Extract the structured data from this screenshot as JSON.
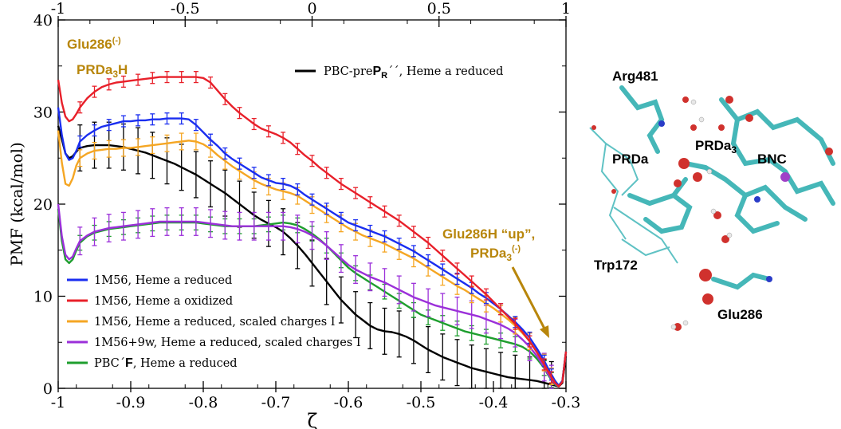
{
  "chart_data": {
    "type": "line",
    "xlabel": "ζ",
    "ylabel": "PMF (kcal/mol)",
    "xlim": [
      -1.0,
      -0.3
    ],
    "ylim": [
      0,
      40
    ],
    "bottom_ticks": [
      "-1",
      "-0.9",
      "-0.8",
      "-0.7",
      "-0.6",
      "-0.5",
      "-0.4",
      "-0.3"
    ],
    "top_ticks": [
      "-1",
      "-0.5",
      "0",
      "0.5",
      "1"
    ],
    "y_ticks": [
      "0",
      "10",
      "20",
      "30",
      "40"
    ],
    "series": [
      {
        "name": "1M56, Heme a reduced",
        "color": "#1a2ef0",
        "x": [
          -1.0,
          -0.995,
          -0.99,
          -0.985,
          -0.98,
          -0.975,
          -0.97,
          -0.96,
          -0.95,
          -0.94,
          -0.93,
          -0.92,
          -0.91,
          -0.9,
          -0.89,
          -0.88,
          -0.87,
          -0.86,
          -0.85,
          -0.84,
          -0.83,
          -0.82,
          -0.81,
          -0.8,
          -0.79,
          -0.78,
          -0.77,
          -0.76,
          -0.75,
          -0.74,
          -0.73,
          -0.72,
          -0.71,
          -0.7,
          -0.69,
          -0.68,
          -0.67,
          -0.66,
          -0.65,
          -0.64,
          -0.63,
          -0.62,
          -0.61,
          -0.6,
          -0.59,
          -0.58,
          -0.57,
          -0.56,
          -0.55,
          -0.54,
          -0.53,
          -0.52,
          -0.51,
          -0.5,
          -0.49,
          -0.48,
          -0.47,
          -0.46,
          -0.45,
          -0.44,
          -0.43,
          -0.42,
          -0.41,
          -0.4,
          -0.39,
          -0.38,
          -0.37,
          -0.36,
          -0.35,
          -0.34,
          -0.33,
          -0.325,
          -0.32,
          -0.315,
          -0.31,
          -0.305,
          -0.3
        ],
        "y": [
          30.5,
          27.5,
          25.5,
          24.8,
          25.0,
          25.8,
          26.8,
          27.5,
          28.0,
          28.4,
          28.6,
          28.8,
          29.0,
          29.0,
          29.1,
          29.1,
          29.2,
          29.2,
          29.3,
          29.3,
          29.3,
          29.2,
          28.6,
          27.8,
          27.0,
          26.3,
          25.5,
          24.9,
          24.4,
          23.9,
          23.4,
          22.9,
          22.6,
          22.3,
          22.2,
          22.0,
          21.6,
          21.0,
          20.5,
          20.0,
          19.5,
          19.0,
          18.5,
          18.0,
          17.7,
          17.4,
          17.1,
          16.8,
          16.5,
          16.1,
          15.7,
          15.3,
          14.9,
          14.4,
          13.9,
          13.4,
          12.9,
          12.4,
          11.9,
          11.4,
          10.9,
          10.3,
          9.8,
          9.2,
          8.6,
          7.9,
          7.2,
          6.4,
          5.5,
          4.3,
          3.0,
          2.2,
          1.5,
          0.8,
          0.3,
          0.8,
          4.0
        ],
        "error_every": 2,
        "error": 0.6
      },
      {
        "name": "1M56, Heme a oxidized",
        "color": "#e8202a",
        "x": [
          -1.0,
          -0.995,
          -0.99,
          -0.985,
          -0.98,
          -0.975,
          -0.97,
          -0.96,
          -0.95,
          -0.94,
          -0.93,
          -0.92,
          -0.91,
          -0.9,
          -0.89,
          -0.88,
          -0.87,
          -0.86,
          -0.85,
          -0.84,
          -0.83,
          -0.82,
          -0.81,
          -0.8,
          -0.79,
          -0.78,
          -0.77,
          -0.76,
          -0.75,
          -0.74,
          -0.73,
          -0.72,
          -0.71,
          -0.7,
          -0.69,
          -0.68,
          -0.67,
          -0.66,
          -0.65,
          -0.64,
          -0.63,
          -0.62,
          -0.61,
          -0.6,
          -0.59,
          -0.58,
          -0.57,
          -0.56,
          -0.55,
          -0.54,
          -0.53,
          -0.52,
          -0.51,
          -0.5,
          -0.49,
          -0.48,
          -0.47,
          -0.46,
          -0.45,
          -0.44,
          -0.43,
          -0.42,
          -0.41,
          -0.4,
          -0.39,
          -0.38,
          -0.37,
          -0.36,
          -0.35,
          -0.34,
          -0.33,
          -0.325,
          -0.32,
          -0.315,
          -0.31,
          -0.305,
          -0.3
        ],
        "y": [
          33.5,
          31.0,
          29.5,
          29.0,
          29.2,
          29.8,
          30.5,
          31.5,
          32.2,
          32.7,
          33.0,
          33.2,
          33.3,
          33.4,
          33.5,
          33.6,
          33.7,
          33.8,
          33.8,
          33.8,
          33.8,
          33.8,
          33.8,
          33.7,
          33.2,
          32.3,
          31.4,
          30.6,
          29.9,
          29.3,
          28.7,
          28.2,
          27.9,
          27.6,
          27.2,
          26.7,
          26.0,
          25.3,
          24.7,
          24.0,
          23.4,
          22.8,
          22.2,
          21.7,
          21.2,
          20.7,
          20.2,
          19.7,
          19.2,
          18.7,
          18.2,
          17.6,
          17.0,
          16.4,
          15.8,
          15.1,
          14.4,
          13.7,
          13.0,
          12.3,
          11.6,
          10.9,
          10.2,
          9.4,
          8.6,
          7.8,
          7.0,
          6.1,
          5.1,
          3.9,
          2.6,
          1.9,
          1.2,
          0.6,
          0.2,
          0.7,
          4.0
        ],
        "error_every": 2,
        "error": 0.6
      },
      {
        "name": "1M56, Heme a reduced, scaled charges I",
        "color": "#f5a623",
        "x": [
          -1.0,
          -0.995,
          -0.99,
          -0.985,
          -0.98,
          -0.975,
          -0.97,
          -0.96,
          -0.95,
          -0.94,
          -0.93,
          -0.92,
          -0.91,
          -0.9,
          -0.89,
          -0.88,
          -0.87,
          -0.86,
          -0.85,
          -0.84,
          -0.83,
          -0.82,
          -0.81,
          -0.8,
          -0.79,
          -0.78,
          -0.77,
          -0.76,
          -0.75,
          -0.74,
          -0.73,
          -0.72,
          -0.71,
          -0.7,
          -0.69,
          -0.68,
          -0.67,
          -0.66,
          -0.65,
          -0.64,
          -0.63,
          -0.62,
          -0.61,
          -0.6,
          -0.59,
          -0.58,
          -0.57,
          -0.56,
          -0.55,
          -0.54,
          -0.53,
          -0.52,
          -0.51,
          -0.5,
          -0.49,
          -0.48,
          -0.47,
          -0.46,
          -0.45,
          -0.44,
          -0.43,
          -0.42,
          -0.41,
          -0.4,
          -0.39,
          -0.38,
          -0.37,
          -0.36,
          -0.35,
          -0.34,
          -0.33,
          -0.325,
          -0.32,
          -0.315,
          -0.31,
          -0.305,
          -0.3
        ],
        "y": [
          28.0,
          24.5,
          22.2,
          22.0,
          22.8,
          24.2,
          25.0,
          25.5,
          25.8,
          25.9,
          26.0,
          26.0,
          26.1,
          26.1,
          26.2,
          26.3,
          26.4,
          26.5,
          26.6,
          26.7,
          26.8,
          26.9,
          26.8,
          26.5,
          26.0,
          25.3,
          24.7,
          24.1,
          23.6,
          23.1,
          22.6,
          22.2,
          21.9,
          21.6,
          21.4,
          21.2,
          20.9,
          20.4,
          19.9,
          19.4,
          18.9,
          18.4,
          17.9,
          17.4,
          17.0,
          16.6,
          16.3,
          16.0,
          15.7,
          15.3,
          14.9,
          14.5,
          14.1,
          13.6,
          13.1,
          12.6,
          12.1,
          11.6,
          11.1,
          10.7,
          10.2,
          9.7,
          9.2,
          8.7,
          8.1,
          7.5,
          6.8,
          6.0,
          5.1,
          4.0,
          2.8,
          2.0,
          1.3,
          0.7,
          0.3,
          0.8,
          4.0
        ],
        "error_every": 2,
        "error": 0.9
      },
      {
        "name": "1M56+9w, Heme a reduced, scaled charges I",
        "color": "#9b30d9",
        "x": [
          -1.0,
          -0.995,
          -0.99,
          -0.985,
          -0.98,
          -0.975,
          -0.97,
          -0.96,
          -0.95,
          -0.94,
          -0.93,
          -0.92,
          -0.91,
          -0.9,
          -0.89,
          -0.88,
          -0.87,
          -0.86,
          -0.85,
          -0.84,
          -0.83,
          -0.82,
          -0.81,
          -0.8,
          -0.79,
          -0.78,
          -0.77,
          -0.76,
          -0.75,
          -0.74,
          -0.73,
          -0.72,
          -0.71,
          -0.7,
          -0.69,
          -0.68,
          -0.67,
          -0.66,
          -0.65,
          -0.64,
          -0.63,
          -0.62,
          -0.61,
          -0.6,
          -0.59,
          -0.58,
          -0.57,
          -0.56,
          -0.55,
          -0.54,
          -0.53,
          -0.52,
          -0.51,
          -0.5,
          -0.49,
          -0.48,
          -0.47,
          -0.46,
          -0.45,
          -0.44,
          -0.43,
          -0.42,
          -0.41,
          -0.4,
          -0.39,
          -0.38,
          -0.37,
          -0.36,
          -0.35,
          -0.34,
          -0.33,
          -0.325,
          -0.32,
          -0.315,
          -0.31,
          -0.305,
          -0.3
        ],
        "y": [
          20.0,
          16.5,
          14.5,
          14.0,
          14.3,
          15.2,
          16.0,
          16.6,
          17.0,
          17.2,
          17.4,
          17.5,
          17.6,
          17.7,
          17.8,
          17.9,
          18.0,
          18.1,
          18.1,
          18.1,
          18.1,
          18.1,
          18.1,
          18.0,
          17.9,
          17.8,
          17.7,
          17.6,
          17.6,
          17.6,
          17.6,
          17.6,
          17.6,
          17.6,
          17.6,
          17.5,
          17.3,
          17.0,
          16.6,
          16.1,
          15.5,
          14.8,
          14.1,
          13.4,
          12.9,
          12.5,
          12.1,
          11.8,
          11.5,
          11.1,
          10.7,
          10.3,
          9.9,
          9.6,
          9.3,
          9.0,
          8.8,
          8.6,
          8.4,
          8.2,
          8.0,
          7.8,
          7.5,
          7.2,
          6.9,
          6.5,
          6.0,
          5.3,
          4.5,
          3.5,
          2.3,
          1.6,
          1.0,
          0.5,
          0.2,
          0.8,
          4.0
        ],
        "error_every": 2,
        "error": 1.5
      },
      {
        "name": "PBC´F, Heme a reduced",
        "color": "#1e9e2e",
        "x": [
          -1.0,
          -0.995,
          -0.99,
          -0.985,
          -0.98,
          -0.975,
          -0.97,
          -0.96,
          -0.95,
          -0.94,
          -0.93,
          -0.92,
          -0.91,
          -0.9,
          -0.89,
          -0.88,
          -0.87,
          -0.86,
          -0.85,
          -0.84,
          -0.83,
          -0.82,
          -0.81,
          -0.8,
          -0.79,
          -0.78,
          -0.77,
          -0.76,
          -0.75,
          -0.74,
          -0.73,
          -0.72,
          -0.71,
          -0.7,
          -0.69,
          -0.68,
          -0.67,
          -0.66,
          -0.65,
          -0.64,
          -0.63,
          -0.62,
          -0.61,
          -0.6,
          -0.59,
          -0.58,
          -0.57,
          -0.56,
          -0.55,
          -0.54,
          -0.53,
          -0.52,
          -0.51,
          -0.5,
          -0.49,
          -0.48,
          -0.47,
          -0.46,
          -0.45,
          -0.44,
          -0.43,
          -0.42,
          -0.41,
          -0.4,
          -0.39,
          -0.38,
          -0.37,
          -0.36,
          -0.35,
          -0.34,
          -0.33,
          -0.325,
          -0.32,
          -0.315,
          -0.31,
          -0.305,
          -0.3
        ],
        "y": [
          19.5,
          16.0,
          14.0,
          13.6,
          14.0,
          15.0,
          15.8,
          16.5,
          16.9,
          17.1,
          17.3,
          17.4,
          17.5,
          17.6,
          17.7,
          17.8,
          17.9,
          18.0,
          18.0,
          18.0,
          18.0,
          18.0,
          18.0,
          17.9,
          17.8,
          17.7,
          17.6,
          17.6,
          17.6,
          17.6,
          17.6,
          17.7,
          17.8,
          17.9,
          18.0,
          17.9,
          17.7,
          17.3,
          16.8,
          16.2,
          15.5,
          14.7,
          13.9,
          13.1,
          12.5,
          12.0,
          11.5,
          11.0,
          10.5,
          10.0,
          9.5,
          9.0,
          8.5,
          8.0,
          7.7,
          7.4,
          7.1,
          6.8,
          6.5,
          6.2,
          6.0,
          5.8,
          5.6,
          5.4,
          5.2,
          5.0,
          4.8,
          4.5,
          4.0,
          3.2,
          2.2,
          1.5,
          0.9,
          0.4,
          0.2,
          0.8,
          4.0
        ],
        "error_every": 2,
        "error": 0.8
      },
      {
        "name": "PBC-preP_R´´, Heme a reduced",
        "color": "#000000",
        "x": [
          -1.0,
          -0.995,
          -0.99,
          -0.985,
          -0.98,
          -0.975,
          -0.97,
          -0.96,
          -0.95,
          -0.94,
          -0.93,
          -0.92,
          -0.91,
          -0.9,
          -0.89,
          -0.88,
          -0.87,
          -0.86,
          -0.85,
          -0.84,
          -0.83,
          -0.82,
          -0.81,
          -0.8,
          -0.79,
          -0.78,
          -0.77,
          -0.76,
          -0.75,
          -0.74,
          -0.73,
          -0.72,
          -0.71,
          -0.7,
          -0.69,
          -0.68,
          -0.67,
          -0.66,
          -0.65,
          -0.64,
          -0.63,
          -0.62,
          -0.61,
          -0.6,
          -0.59,
          -0.58,
          -0.57,
          -0.56,
          -0.55,
          -0.54,
          -0.53,
          -0.52,
          -0.51,
          -0.5,
          -0.49,
          -0.48,
          -0.47,
          -0.46,
          -0.45,
          -0.44,
          -0.43,
          -0.42,
          -0.41,
          -0.4,
          -0.39,
          -0.38,
          -0.37,
          -0.36,
          -0.35,
          -0.34,
          -0.33,
          -0.325,
          -0.32,
          -0.315,
          -0.31,
          -0.305,
          -0.3
        ],
        "y": [
          28.5,
          27.0,
          25.5,
          25.0,
          25.2,
          25.7,
          26.1,
          26.3,
          26.4,
          26.4,
          26.4,
          26.3,
          26.2,
          26.0,
          25.8,
          25.6,
          25.3,
          25.0,
          24.7,
          24.4,
          24.0,
          23.6,
          23.2,
          22.7,
          22.2,
          21.7,
          21.2,
          20.6,
          20.0,
          19.4,
          18.8,
          18.3,
          17.9,
          17.5,
          17.0,
          16.3,
          15.5,
          14.6,
          13.6,
          12.6,
          11.6,
          10.6,
          9.6,
          8.8,
          8.0,
          7.4,
          6.8,
          6.4,
          6.2,
          6.1,
          5.9,
          5.6,
          5.2,
          4.7,
          4.2,
          3.8,
          3.4,
          3.1,
          2.8,
          2.5,
          2.2,
          2.0,
          1.8,
          1.6,
          1.4,
          1.2,
          1.1,
          1.0,
          0.9,
          0.8,
          0.6,
          0.5,
          0.4,
          0.3,
          0.2,
          0.6,
          3.5
        ],
        "error_every": 2,
        "error": 2.5
      }
    ],
    "legend_lower_left": [
      "1M56, Heme a reduced",
      "1M56, Heme a oxidized",
      "1M56, Heme a reduced, scaled charges I",
      "1M56+9w, Heme a reduced, scaled charges I",
      "PBC´F, Heme a reduced"
    ],
    "legend_upper_right": "PBC-preP_R´´, Heme a reduced",
    "annotations": {
      "left_line1": "Glu286",
      "left_sup": "(-)",
      "left_line2_a": "PRDa",
      "left_line2_sub": "3",
      "left_line2_b": "H",
      "right_line1": "Glu286H “up”,",
      "right_line2_a": "PRDa",
      "right_line2_sub": "3",
      "right_line2_sup": "(-)"
    },
    "legend_parts": {
      "pbcf_a": "PBC",
      "pbcf_b": "´",
      "pbcf_bold": "F",
      "pbcf_c": ", Heme a reduced",
      "pre_a": "PBC-pre",
      "pre_bold": "P",
      "pre_sub": "R",
      "pre_b": "´´, Heme a reduced"
    }
  },
  "molecule_labels": {
    "arg": "Arg481",
    "prda3_a": "PRDa",
    "prda3_sub": "3",
    "prda": "PRDa",
    "bnc": "BNC",
    "glu_up": "Glu286H “up”,",
    "trp": "Trp172",
    "glu": "Glu286"
  }
}
